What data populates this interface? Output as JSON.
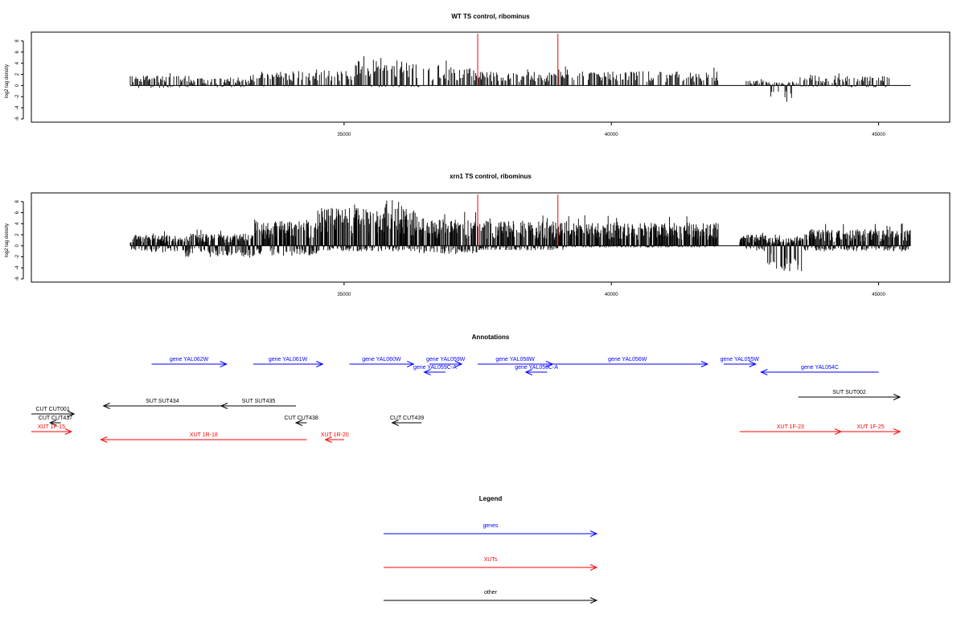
{
  "chart_data": [
    {
      "type": "bar",
      "title": "WT TS control, ribominus",
      "ylabel": "log2 tag density",
      "xlabel": "",
      "xlim": [
        29150,
        46330
      ],
      "ylim": [
        -6,
        9
      ],
      "xticks": [
        35000,
        40000,
        45000
      ],
      "yticks": [
        -6,
        -4,
        -2,
        0,
        2,
        4,
        6,
        8
      ],
      "grid": false,
      "xrange": [
        31000,
        45600
      ],
      "markers": [
        37500,
        39000
      ],
      "marker_color": "#ff0000",
      "bar_color": "#000000",
      "seed": 7,
      "density": 0.85,
      "profile": [
        {
          "from": 31000,
          "to": 32100,
          "pos": 1.8,
          "neg": 0.5
        },
        {
          "from": 32100,
          "to": 33300,
          "pos": 1.3,
          "neg": 0.3
        },
        {
          "from": 33300,
          "to": 34000,
          "pos": 2.5,
          "neg": 0.2
        },
        {
          "from": 34000,
          "to": 35200,
          "pos": 2.7,
          "neg": 0.1
        },
        {
          "from": 35200,
          "to": 36400,
          "pos": 4.5,
          "neg": 0.3
        },
        {
          "from": 36400,
          "to": 37500,
          "pos": 3.5,
          "neg": 0.0
        },
        {
          "from": 37500,
          "to": 39100,
          "pos": 2.5,
          "neg": 0.0
        },
        {
          "from": 39100,
          "to": 42000,
          "pos": 2.6,
          "neg": 0.0
        },
        {
          "from": 42500,
          "to": 42900,
          "pos": 1.0,
          "neg": 0.0
        },
        {
          "from": 42900,
          "to": 43500,
          "pos": 0.6,
          "neg": 3.5
        },
        {
          "from": 43500,
          "to": 45200,
          "pos": 1.8,
          "neg": 0.3
        }
      ]
    },
    {
      "type": "bar",
      "title": "xrn1 TS control, ribominus",
      "ylabel": "log2 tag density",
      "xlabel": "",
      "xlim": [
        29150,
        46330
      ],
      "ylim": [
        -6,
        9
      ],
      "xticks": [
        35000,
        40000,
        45000
      ],
      "yticks": [
        -6,
        -4,
        -2,
        0,
        2,
        4,
        6,
        8
      ],
      "grid": false,
      "xrange": [
        31000,
        45600
      ],
      "markers": [
        37500,
        39000
      ],
      "marker_color": "#ff0000",
      "bar_color": "#000000",
      "seed": 19,
      "density": 1.9,
      "profile": [
        {
          "from": 31000,
          "to": 32000,
          "pos": 2.0,
          "neg": 1.2
        },
        {
          "from": 32000,
          "to": 33300,
          "pos": 2.2,
          "neg": 2.2
        },
        {
          "from": 33300,
          "to": 34500,
          "pos": 4.5,
          "neg": 1.8
        },
        {
          "from": 34500,
          "to": 36400,
          "pos": 7.0,
          "neg": 1.0
        },
        {
          "from": 36400,
          "to": 37500,
          "pos": 5.0,
          "neg": 1.5
        },
        {
          "from": 37500,
          "to": 39100,
          "pos": 4.5,
          "neg": 0.8
        },
        {
          "from": 39100,
          "to": 42000,
          "pos": 4.2,
          "neg": 0.3
        },
        {
          "from": 42400,
          "to": 42900,
          "pos": 2.0,
          "neg": 1.0
        },
        {
          "from": 42900,
          "to": 43600,
          "pos": 1.5,
          "neg": 5.0
        },
        {
          "from": 43600,
          "to": 45600,
          "pos": 3.0,
          "neg": 1.0
        }
      ]
    }
  ],
  "annotations": {
    "title": "Annotations",
    "xlim": [
      29150,
      46330
    ],
    "colors": {
      "gene": "#0000ff",
      "xut": "#ff0000",
      "other": "#000000"
    },
    "features": [
      {
        "label": "gene YAL062W",
        "kind": "gene",
        "start": 31400,
        "end": 32800,
        "strand": "+",
        "row": 0
      },
      {
        "label": "gene YAL061W",
        "kind": "gene",
        "start": 33300,
        "end": 34600,
        "strand": "+",
        "row": 0
      },
      {
        "label": "gene YAL060W",
        "kind": "gene",
        "start": 35100,
        "end": 36300,
        "strand": "+",
        "row": 0
      },
      {
        "label": "gene YAL059W",
        "kind": "gene",
        "start": 36600,
        "end": 37200,
        "strand": "+",
        "row": 0
      },
      {
        "label": "gene YAL059C-A",
        "kind": "gene",
        "start": 36500,
        "end": 36900,
        "strand": "-",
        "row": 1
      },
      {
        "label": "gene YAL058W",
        "kind": "gene",
        "start": 37500,
        "end": 38900,
        "strand": "+",
        "row": 0
      },
      {
        "label": "gene YAL056C-A",
        "kind": "gene",
        "start": 38400,
        "end": 38800,
        "strand": "-",
        "row": 1
      },
      {
        "label": "gene YAL056W",
        "kind": "gene",
        "start": 38800,
        "end": 41800,
        "strand": "+",
        "row": 0
      },
      {
        "label": "gene YAL055W",
        "kind": "gene",
        "start": 42100,
        "end": 42700,
        "strand": "+",
        "row": 0
      },
      {
        "label": "gene YAL054C",
        "kind": "gene",
        "start": 42800,
        "end": 45000,
        "strand": "-",
        "row": 1
      },
      {
        "label": "SUT SUT002",
        "kind": "other",
        "start": 43500,
        "end": 45400,
        "strand": "+",
        "row": 2
      },
      {
        "label": "SUT SUT434",
        "kind": "other",
        "start": 30500,
        "end": 32700,
        "strand": "-",
        "row": 3
      },
      {
        "label": "SUT SUT435",
        "kind": "other",
        "start": 32700,
        "end": 34100,
        "strand": "-",
        "row": 3
      },
      {
        "label": "CUT CUT001",
        "kind": "other",
        "start": 29150,
        "end": 29950,
        "strand": "+",
        "row": 4
      },
      {
        "label": "CUT CUT437",
        "kind": "other",
        "start": 29500,
        "end": 29700,
        "strand": "-",
        "row": 5
      },
      {
        "label": "CUT CUT438",
        "kind": "other",
        "start": 34100,
        "end": 34300,
        "strand": "-",
        "row": 5
      },
      {
        "label": "CUT CUT439",
        "kind": "other",
        "start": 35900,
        "end": 36450,
        "strand": "-",
        "row": 5
      },
      {
        "label": "XUT 1F-15",
        "kind": "xut",
        "start": 29150,
        "end": 29900,
        "strand": "+",
        "row": 6
      },
      {
        "label": "XUT 1R-18",
        "kind": "xut",
        "start": 30450,
        "end": 34300,
        "strand": "-",
        "row": 7
      },
      {
        "label": "XUT 1R-20",
        "kind": "xut",
        "start": 34650,
        "end": 35000,
        "strand": "-",
        "row": 7
      },
      {
        "label": "XUT 1F-23",
        "kind": "xut",
        "start": 42400,
        "end": 44300,
        "strand": "+",
        "row": 6
      },
      {
        "label": "XUT 1F-25",
        "kind": "xut",
        "start": 44300,
        "end": 45400,
        "strand": "+",
        "row": 6
      }
    ]
  },
  "legend": {
    "title": "Legend",
    "items": [
      {
        "label": "genes",
        "color": "#0000ff"
      },
      {
        "label": "XUTs",
        "color": "#ff0000"
      },
      {
        "label": "other",
        "color": "#000000"
      }
    ]
  }
}
